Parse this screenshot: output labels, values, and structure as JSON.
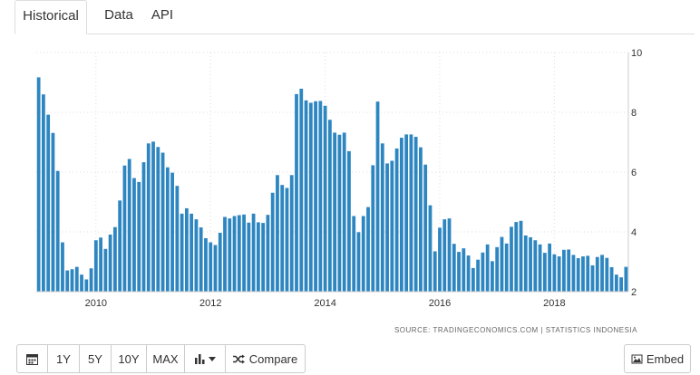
{
  "tabs": [
    {
      "label": "Historical",
      "active": true
    },
    {
      "label": "Data",
      "active": false
    },
    {
      "label": "API",
      "active": false
    }
  ],
  "source": "SOURCE: TRADINGECONOMICS.COM  |  STATISTICS INDONESIA",
  "toolbar": {
    "calendar_icon": "calendar-icon",
    "one_year": "1Y",
    "five_year": "5Y",
    "ten_year": "10Y",
    "max": "MAX",
    "chart_type_icon": "bar-chart-icon",
    "compare_label": "Compare",
    "compare_icon": "shuffle-icon",
    "embed_label": "Embed",
    "embed_icon": "image-icon"
  },
  "colors": {
    "bar": "#2e86c1",
    "grid": "#dddddd"
  },
  "chart_data": {
    "type": "bar",
    "title": "",
    "xlabel": "",
    "ylabel": "",
    "frequency": "monthly",
    "start": "2009-01",
    "ylim": [
      2,
      10
    ],
    "yticks": [
      2,
      4,
      6,
      8,
      10
    ],
    "xticks": [
      "2010",
      "2012",
      "2014",
      "2016",
      "2018"
    ],
    "y_axis_position": "right",
    "grid": "dotted",
    "values": [
      9.17,
      8.6,
      7.92,
      7.31,
      6.04,
      3.65,
      2.71,
      2.75,
      2.83,
      2.57,
      2.41,
      2.78,
      3.72,
      3.81,
      3.43,
      3.91,
      4.16,
      5.05,
      6.22,
      6.44,
      5.8,
      5.67,
      6.33,
      6.96,
      7.02,
      6.84,
      6.65,
      6.16,
      5.98,
      5.54,
      4.61,
      4.79,
      4.61,
      4.42,
      4.15,
      3.79,
      3.65,
      3.56,
      3.97,
      4.5,
      4.45,
      4.53,
      4.56,
      4.58,
      4.31,
      4.61,
      4.32,
      4.3,
      4.57,
      5.31,
      5.9,
      5.57,
      5.47,
      5.9,
      8.61,
      8.79,
      8.4,
      8.32,
      8.37,
      8.38,
      8.22,
      7.75,
      7.32,
      7.25,
      7.32,
      6.7,
      4.53,
      3.99,
      4.53,
      4.83,
      6.23,
      8.36,
      6.96,
      6.29,
      6.38,
      6.79,
      7.15,
      7.26,
      7.26,
      7.18,
      6.83,
      6.25,
      4.89,
      3.35,
      4.14,
      4.42,
      4.45,
      3.6,
      3.33,
      3.45,
      3.21,
      2.79,
      3.07,
      3.31,
      3.58,
      3.02,
      3.49,
      3.83,
      3.61,
      4.17,
      4.33,
      4.37,
      3.88,
      3.82,
      3.72,
      3.58,
      3.3,
      3.61,
      3.25,
      3.18,
      3.4,
      3.41,
      3.23,
      3.12,
      3.18,
      3.2,
      2.88,
      3.16,
      3.23,
      3.13,
      2.82,
      2.57,
      2.48,
      2.83
    ]
  }
}
